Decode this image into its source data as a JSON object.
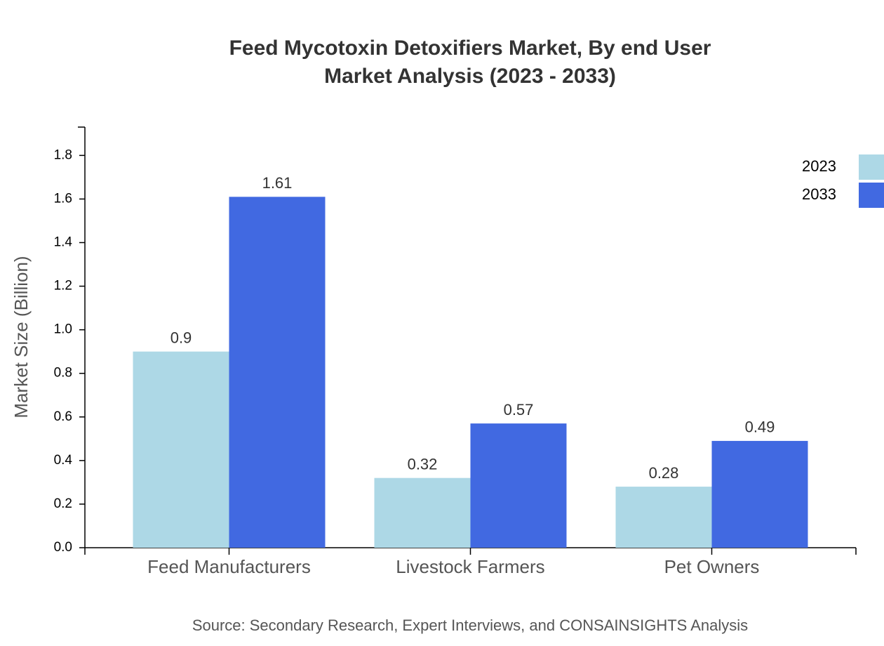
{
  "chart_data": {
    "type": "bar",
    "title": "Feed Mycotoxin Detoxifiers Market, By end User",
    "subtitle": "Market Analysis (2023 - 2033)",
    "y_label": "Market Size (Billion)",
    "source": "Source: Secondary Research, Expert Interviews, and CONSAINSIGHTS Analysis",
    "categories": [
      "Feed Manufacturers",
      "Livestock Farmers",
      "Pet Owners"
    ],
    "series": [
      {
        "name": "2023",
        "color": "#add8e6",
        "values": [
          0.9,
          0.32,
          0.28
        ]
      },
      {
        "name": "2033",
        "color": "#4169e1",
        "values": [
          1.61,
          0.57,
          0.49
        ]
      }
    ],
    "ylim": [
      0,
      1.93
    ],
    "yticks": [
      {
        "value": 0,
        "label": "0.0"
      },
      0.2,
      0.4,
      0.6,
      0.8,
      {
        "value": 1,
        "label": "1.0"
      },
      1.2,
      1.4,
      1.6,
      1.8
    ],
    "legend": "top-right"
  }
}
